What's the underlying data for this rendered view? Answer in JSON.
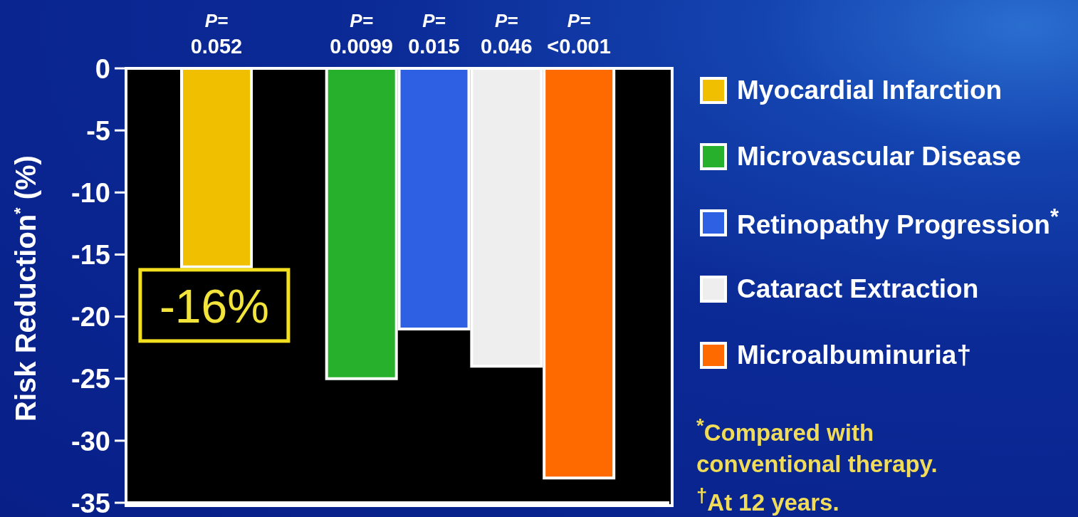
{
  "chart_data": {
    "type": "bar",
    "ylabel": "Risk Reduction$^{*}$ (%)",
    "categories": [
      null,
      null,
      null,
      null,
      null,
      null
    ],
    "series": [
      {
        "name": "Myocardial Infarction",
        "color": "#f0c000",
        "values": [
          -16,
          null,
          null,
          null,
          null,
          null
        ],
        "value_labels": [
          "-16%",
          null,
          null,
          null,
          null,
          null
        ]
      },
      {
        "name": "Microvascular Disease",
        "color": "#26b02c",
        "values": [
          null,
          null,
          -25,
          null,
          null,
          null
        ]
      },
      {
        "name": "Retinopathy Progression$^{*}$",
        "color": "#2e60e4",
        "values": [
          null,
          null,
          null,
          -21,
          null,
          null
        ]
      },
      {
        "name": "Cataract Extraction",
        "color": "#eeeeee",
        "values": [
          null,
          null,
          null,
          null,
          -24,
          null
        ]
      },
      {
        "name": "Microalbuminuria†",
        "color": "#ff6a00",
        "values": [
          null,
          null,
          null,
          null,
          null,
          -33
        ]
      }
    ],
    "stacked": true,
    "ylim": [
      -35,
      0
    ],
    "yticks": [
      0,
      -5,
      -10,
      -15,
      -20,
      -25,
      -30,
      -35
    ],
    "legend": "right",
    "annotations": [
      {
        "text": "P=\n0.052",
        "y": 0
      },
      {
        "text": "P=\n0.0099",
        "y": 0
      },
      {
        "text": "P=\n0.015",
        "y": 0
      },
      {
        "text": "P=\n0.046",
        "y": 0
      },
      {
        "text": "P=\n<0.001",
        "y": 0
      },
      "$^{*}$Compared with conventional therapy.",
      "$^{†}$At 12 years."
    ]
  }
}
